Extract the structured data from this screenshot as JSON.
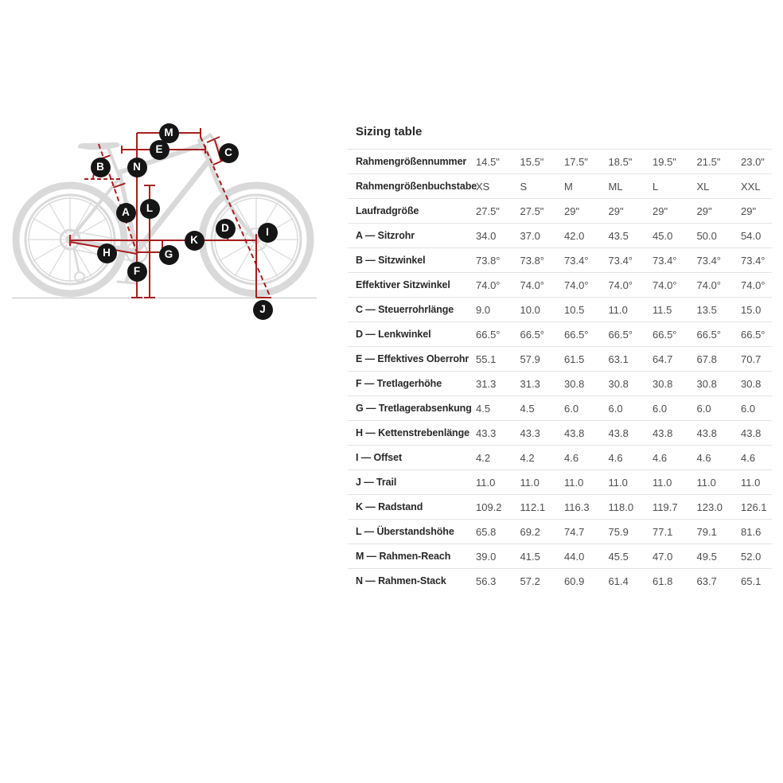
{
  "title": "Sizing table",
  "colors": {
    "accent_red": "#a81e1e",
    "marker_background": "#151515",
    "table_border": "#e3e3e3",
    "label_text": "#282828",
    "value_text": "#4d4d4d"
  },
  "diagram": {
    "description": "bike-geometry-diagram",
    "markers": [
      "M",
      "E",
      "C",
      "B",
      "N",
      "A",
      "L",
      "D",
      "I",
      "K",
      "H",
      "G",
      "F",
      "J"
    ]
  },
  "table": {
    "rows": [
      {
        "label": "Rahmengrößennummer",
        "values": [
          "14.5\"",
          "15.5\"",
          "17.5\"",
          "18.5\"",
          "19.5\"",
          "21.5\"",
          "23.0\""
        ]
      },
      {
        "label": "Rahmengrößenbuchstabe",
        "values": [
          "XS",
          "S",
          "M",
          "ML",
          "L",
          "XL",
          "XXL"
        ]
      },
      {
        "label": "Laufradgröße",
        "values": [
          "27.5\"",
          "27.5\"",
          "29\"",
          "29\"",
          "29\"",
          "29\"",
          "29\""
        ]
      },
      {
        "label": "A — Sitzrohr",
        "values": [
          "34.0",
          "37.0",
          "42.0",
          "43.5",
          "45.0",
          "50.0",
          "54.0"
        ]
      },
      {
        "label": "B — Sitzwinkel",
        "values": [
          "73.8°",
          "73.8°",
          "73.4°",
          "73.4°",
          "73.4°",
          "73.4°",
          "73.4°"
        ]
      },
      {
        "label": "Effektiver Sitzwinkel",
        "values": [
          "74.0°",
          "74.0°",
          "74.0°",
          "74.0°",
          "74.0°",
          "74.0°",
          "74.0°"
        ]
      },
      {
        "label": "C — Steuerrohrlänge",
        "values": [
          "9.0",
          "10.0",
          "10.5",
          "11.0",
          "11.5",
          "13.5",
          "15.0"
        ]
      },
      {
        "label": "D — Lenkwinkel",
        "values": [
          "66.5°",
          "66.5°",
          "66.5°",
          "66.5°",
          "66.5°",
          "66.5°",
          "66.5°"
        ]
      },
      {
        "label": "E — Effektives Oberrohr",
        "values": [
          "55.1",
          "57.9",
          "61.5",
          "63.1",
          "64.7",
          "67.8",
          "70.7"
        ]
      },
      {
        "label": "F — Tretlagerhöhe",
        "values": [
          "31.3",
          "31.3",
          "30.8",
          "30.8",
          "30.8",
          "30.8",
          "30.8"
        ]
      },
      {
        "label": "G — Tretlagerabsenkung",
        "values": [
          "4.5",
          "4.5",
          "6.0",
          "6.0",
          "6.0",
          "6.0",
          "6.0"
        ]
      },
      {
        "label": "H — Kettenstrebenlänge",
        "values": [
          "43.3",
          "43.3",
          "43.8",
          "43.8",
          "43.8",
          "43.8",
          "43.8"
        ]
      },
      {
        "label": "I — Offset",
        "values": [
          "4.2",
          "4.2",
          "4.6",
          "4.6",
          "4.6",
          "4.6",
          "4.6"
        ]
      },
      {
        "label": "J — Trail",
        "values": [
          "11.0",
          "11.0",
          "11.0",
          "11.0",
          "11.0",
          "11.0",
          "11.0"
        ]
      },
      {
        "label": "K — Radstand",
        "values": [
          "109.2",
          "112.1",
          "116.3",
          "118.0",
          "119.7",
          "123.0",
          "126.1"
        ]
      },
      {
        "label": "L — Überstandshöhe",
        "values": [
          "65.8",
          "69.2",
          "74.7",
          "75.9",
          "77.1",
          "79.1",
          "81.6"
        ]
      },
      {
        "label": "M — Rahmen-Reach",
        "values": [
          "39.0",
          "41.5",
          "44.0",
          "45.5",
          "47.0",
          "49.5",
          "52.0"
        ]
      },
      {
        "label": "N — Rahmen-Stack",
        "values": [
          "56.3",
          "57.2",
          "60.9",
          "61.4",
          "61.8",
          "63.7",
          "65.1"
        ]
      }
    ]
  }
}
